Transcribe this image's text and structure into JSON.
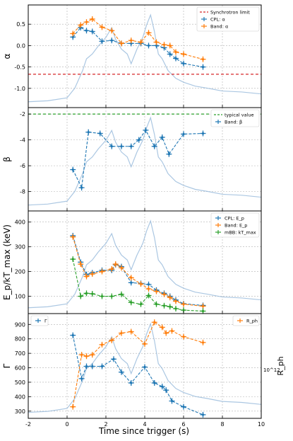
{
  "figure": {
    "xlabel": "Time since trigger (s)",
    "xlim": [
      -2,
      10
    ],
    "xticks": [
      "-2",
      "0",
      "2",
      "4",
      "6",
      "8",
      "10"
    ],
    "background_curve_color": "#8fb4d8"
  },
  "chart_data": [
    {
      "type": "scatter",
      "panel": "alpha",
      "ylabel": "α",
      "ylim": [
        -1.45,
        0.95
      ],
      "yticks": [
        "0.5",
        "0.0",
        "-0.5",
        "-1.0"
      ],
      "reference_line": {
        "y": -0.67,
        "label": "Synchrotron limit",
        "color": "#d62728"
      },
      "legend_position": "top-right",
      "series": [
        {
          "name": "CPL: α",
          "color": "#1f77b4",
          "x": [
            0.3,
            0.7,
            1.0,
            1.3,
            1.8,
            2.3,
            2.8,
            3.3,
            3.8,
            4.2,
            4.6,
            5.0,
            5.3,
            5.6,
            6.0,
            7.0
          ],
          "y": [
            0.2,
            0.42,
            0.35,
            0.33,
            0.1,
            0.12,
            0.05,
            0.05,
            0.05,
            0.0,
            0.0,
            -0.05,
            -0.2,
            -0.3,
            -0.42,
            -0.5
          ]
        },
        {
          "name": "Band: α",
          "color": "#ff7f0e",
          "x": [
            0.3,
            0.7,
            1.0,
            1.3,
            1.8,
            2.3,
            2.8,
            3.3,
            3.8,
            4.2,
            4.6,
            5.0,
            5.3,
            5.6,
            6.0,
            7.0
          ],
          "y": [
            0.28,
            0.48,
            0.55,
            0.62,
            0.43,
            0.35,
            0.05,
            0.12,
            0.08,
            0.3,
            0.08,
            0.02,
            0.0,
            -0.15,
            -0.2,
            -0.32
          ]
        }
      ]
    },
    {
      "type": "scatter",
      "panel": "beta",
      "ylabel": "β",
      "ylim": [
        -9.5,
        -1.5
      ],
      "yticks": [
        "-2",
        "-4",
        "-6",
        "-8"
      ],
      "reference_line": {
        "y": -2,
        "label": "typical value",
        "color": "#2ca02c"
      },
      "legend_position": "top-right",
      "series": [
        {
          "name": "Band: β",
          "color": "#1f77b4",
          "x": [
            0.3,
            0.75,
            1.1,
            1.7,
            2.3,
            2.8,
            3.3,
            3.7,
            4.05,
            4.5,
            4.9,
            5.25,
            6.0,
            7.0
          ],
          "y": [
            -6.3,
            -7.7,
            -3.4,
            -3.5,
            -4.5,
            -4.5,
            -4.5,
            -4.0,
            -3.25,
            -4.5,
            -3.8,
            -5.1,
            -3.55,
            -3.5
          ]
        }
      ]
    },
    {
      "type": "scatter",
      "panel": "epeak",
      "ylabel": "E_p/kT_max (keV)",
      "ylim": [
        30,
        445
      ],
      "yticks": [
        "400",
        "300",
        "200",
        "100"
      ],
      "legend_position": "top-right",
      "series": [
        {
          "name": "CPL: E_p",
          "color": "#1f77b4",
          "x": [
            0.3,
            0.7,
            1.0,
            1.3,
            1.8,
            2.3,
            2.5,
            2.8,
            3.3,
            3.8,
            4.2,
            4.6,
            5.0,
            5.3,
            5.6,
            6.0,
            7.0
          ],
          "y": [
            345,
            238,
            188,
            195,
            205,
            205,
            228,
            220,
            155,
            152,
            148,
            125,
            112,
            100,
            85,
            70,
            63
          ]
        },
        {
          "name": "Band: E_p",
          "color": "#ff7f0e",
          "x": [
            0.3,
            0.7,
            1.0,
            1.3,
            1.8,
            2.3,
            2.5,
            2.8,
            3.3,
            3.8,
            4.2,
            4.6,
            5.0,
            5.3,
            5.6,
            6.0,
            7.0
          ],
          "y": [
            340,
            230,
            180,
            190,
            200,
            210,
            230,
            215,
            175,
            150,
            130,
            120,
            108,
            95,
            80,
            68,
            60
          ]
        },
        {
          "name": "mBB: kT_max",
          "color": "#2ca02c",
          "x": [
            0.3,
            0.7,
            1.0,
            1.3,
            1.8,
            2.3,
            2.8,
            3.3,
            3.8,
            4.2,
            4.6,
            5.0,
            5.3,
            5.6,
            6.0,
            7.0
          ],
          "y": [
            250,
            100,
            112,
            110,
            100,
            100,
            108,
            75,
            68,
            103,
            68,
            62,
            58,
            50,
            44,
            40
          ]
        }
      ]
    },
    {
      "type": "scatter",
      "panel": "gamma",
      "ylabel": "Γ",
      "ylabel_right": "R_ph",
      "right_tick": "10^12",
      "ylim": [
        250,
        975
      ],
      "yticks": [
        "900",
        "800",
        "700",
        "600",
        "500",
        "400",
        "300"
      ],
      "legend_position": "top-left / top-right",
      "series": [
        {
          "name": "Γ",
          "color": "#1f77b4",
          "x": [
            0.3,
            0.75,
            1.0,
            1.3,
            1.8,
            2.4,
            2.8,
            3.3,
            4.0,
            4.5,
            4.9,
            5.1,
            5.4,
            6.0,
            7.0
          ],
          "y": [
            825,
            525,
            610,
            610,
            610,
            660,
            570,
            495,
            605,
            495,
            470,
            445,
            370,
            330,
            275
          ]
        },
        {
          "name": "R_ph",
          "color": "#ff7f0e",
          "x": [
            0.3,
            0.75,
            1.0,
            1.3,
            1.8,
            2.3,
            2.8,
            3.3,
            4.0,
            4.5,
            4.9,
            5.1,
            5.4,
            6.0,
            7.0
          ],
          "y": [
            330,
            690,
            680,
            690,
            760,
            790,
            840,
            850,
            765,
            915,
            880,
            840,
            855,
            815,
            775
          ]
        }
      ]
    }
  ]
}
